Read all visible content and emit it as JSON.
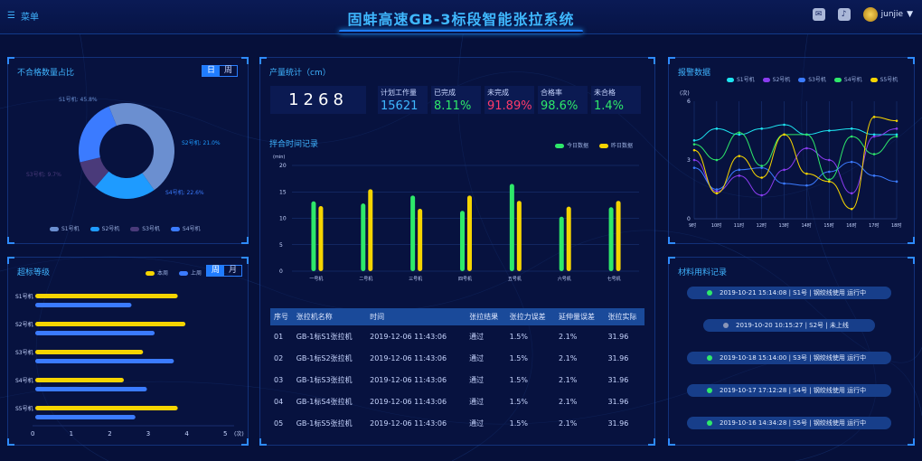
{
  "header": {
    "menu_label": "菜单",
    "title": "固蚌高速GB-3标段智能张拉系统",
    "user": "junjie"
  },
  "unqualified": {
    "title": "不合格数量占比",
    "toggle": [
      "日",
      "周"
    ],
    "active": 0,
    "slices": [
      {
        "name": "S1号机",
        "label": "S1号机: 45.8%",
        "value": 45.8,
        "color": "#6b8fd0"
      },
      {
        "name": "S2号机",
        "label": "S2号机: 21.0%",
        "value": 21.0,
        "color": "#1e9bff"
      },
      {
        "name": "S3号机",
        "label": "S3号机: 9.7%",
        "value": 9.7,
        "color": "#4a3a7a"
      },
      {
        "name": "S4号机",
        "label": "S4号机: 22.6%",
        "value": 22.6,
        "color": "#3b7bff"
      }
    ]
  },
  "overload": {
    "title": "超标等级",
    "legend": [
      "本周",
      "上周"
    ],
    "toggle": [
      "周",
      "月"
    ],
    "active": 0,
    "rows": [
      {
        "name": "S1号机",
        "this": 3.7,
        "last": 2.5
      },
      {
        "name": "S2号机",
        "this": 3.9,
        "last": 3.1
      },
      {
        "name": "S3号机",
        "this": 2.8,
        "last": 3.6
      },
      {
        "name": "S4号机",
        "this": 2.3,
        "last": 2.9
      },
      {
        "name": "S5号机",
        "this": 3.7,
        "last": 2.6
      }
    ],
    "ticks": [
      "0",
      "1",
      "2",
      "3",
      "4",
      "5"
    ],
    "unit": "(次)",
    "colors": {
      "this": "#f5d400",
      "last": "#3b7bff"
    }
  },
  "output": {
    "title": "产量统计（cm）",
    "total": "1268",
    "kpis": [
      {
        "label": "计划工作量",
        "value": "15621",
        "color": "#3fb8ff"
      },
      {
        "label": "已完成",
        "value": "8.11%",
        "color": "#2ee86a"
      },
      {
        "label": "未完成",
        "value": "91.89%",
        "color": "#ff3a6a"
      },
      {
        "label": "合格率",
        "value": "98.6%",
        "color": "#2ee86a"
      },
      {
        "label": "未合格",
        "value": "1.4%",
        "color": "#2ee86a"
      }
    ]
  },
  "mixing": {
    "title": "拌合时间记录",
    "legend": [
      "今日数据",
      "昨日数据"
    ],
    "ylabel": "(min)",
    "yticks": [
      "0",
      "5",
      "10",
      "15",
      "20"
    ],
    "chart_data": {
      "type": "bar",
      "categories": [
        "一号机",
        "二号机",
        "三号机",
        "四号机",
        "五号机",
        "六号机",
        "七号机"
      ],
      "series": [
        {
          "name": "今日数据",
          "values": [
            13.2,
            12.8,
            14.3,
            11.4,
            16.5,
            10.3,
            12.1
          ],
          "color": "#2ee86a"
        },
        {
          "name": "昨日数据",
          "values": [
            12.3,
            15.5,
            11.8,
            14.3,
            13.3,
            12.2,
            13.3
          ],
          "color": "#f5d400"
        }
      ],
      "ylim": [
        0,
        20
      ]
    }
  },
  "alarm": {
    "title": "报警数据",
    "ylabel": "(次)",
    "yticks": [
      "0",
      "3",
      "6"
    ],
    "chart_data": {
      "type": "line",
      "categories": [
        "9时",
        "10时",
        "11时",
        "12时",
        "13时",
        "14时",
        "15时",
        "16时",
        "17时",
        "18时"
      ],
      "ylim": [
        0,
        6
      ],
      "series": [
        {
          "name": "S1号机",
          "color": "#1de4f0",
          "values": [
            4.0,
            4.6,
            4.3,
            4.6,
            4.8,
            4.3,
            4.5,
            4.6,
            4.3,
            4.3
          ]
        },
        {
          "name": "S2号机",
          "color": "#8a3cf0",
          "values": [
            3.0,
            1.4,
            2.2,
            1.2,
            2.5,
            3.6,
            3.0,
            1.3,
            4.2,
            4.6
          ]
        },
        {
          "name": "S3号机",
          "color": "#3b7bff",
          "values": [
            2.6,
            1.5,
            2.5,
            2.6,
            1.8,
            1.7,
            2.4,
            2.9,
            2.2,
            1.9
          ]
        },
        {
          "name": "S4号机",
          "color": "#2ee86a",
          "values": [
            3.8,
            3.0,
            4.4,
            2.7,
            4.3,
            4.3,
            2.0,
            4.2,
            3.3,
            4.2
          ]
        },
        {
          "name": "S5号机",
          "color": "#f5d400",
          "values": [
            3.5,
            1.3,
            3.2,
            2.1,
            4.3,
            2.3,
            1.9,
            0.5,
            5.2,
            5.0
          ]
        }
      ]
    }
  },
  "records": {
    "title": "材料用料记录",
    "items": [
      {
        "text": "2019-10-21 15:14:08 | S1号 | 钢绞线使用   运行中",
        "dot": "#2ee86a"
      },
      {
        "text": "2019-10-20 10:15:27 | S2号 | 未上线",
        "dot": "#8a96b8"
      },
      {
        "text": "2019-10-18 15:14:00 | S3号 | 钢绞线使用   运行中",
        "dot": "#2ee86a"
      },
      {
        "text": "2019-10-17 17:12:28 | S4号 | 钢绞线使用   运行中",
        "dot": "#2ee86a"
      },
      {
        "text": "2019-10-16 14:34:28 | S5号 | 钢绞线使用   运行中",
        "dot": "#2ee86a"
      }
    ]
  },
  "table": {
    "headers": [
      "序号",
      "张拉机名称",
      "时间",
      "张拉结果",
      "张拉力误差",
      "延伸量误差",
      "张拉实际"
    ],
    "rows": [
      [
        "01",
        "GB-1标S1张拉机",
        "2019-12-06 11:43:06",
        "通过",
        "1.5%",
        "2.1%",
        "31.96"
      ],
      [
        "02",
        "GB-1标S2张拉机",
        "2019-12-06 11:43:06",
        "通过",
        "1.5%",
        "2.1%",
        "31.96"
      ],
      [
        "03",
        "GB-1标S3张拉机",
        "2019-12-06 11:43:06",
        "通过",
        "1.5%",
        "2.1%",
        "31.96"
      ],
      [
        "04",
        "GB-1标S4张拉机",
        "2019-12-06 11:43:06",
        "通过",
        "1.5%",
        "2.1%",
        "31.96"
      ],
      [
        "05",
        "GB-1标S5张拉机",
        "2019-12-06 11:43:06",
        "通过",
        "1.5%",
        "2.1%",
        "31.96"
      ]
    ]
  }
}
